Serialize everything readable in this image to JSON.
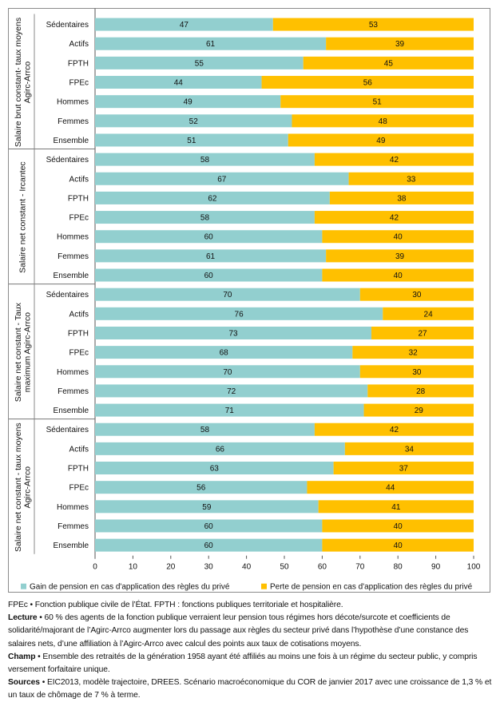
{
  "chart_data": {
    "type": "bar",
    "stacked": true,
    "orientation": "horizontal",
    "xlim": [
      0,
      100
    ],
    "xticks": [
      0,
      10,
      20,
      30,
      40,
      50,
      60,
      70,
      80,
      90,
      100
    ],
    "categories": [
      "Sédentaires",
      "Actifs",
      "FPTH",
      "FPEc",
      "Hommes",
      "Femmes",
      "Ensemble"
    ],
    "series_names": [
      "Gain de pension en cas d'application des règles du privé",
      "Perte de pension en cas d'application des règles du privé"
    ],
    "colors": {
      "gain": "#92cfcf",
      "perte": "#ffc000"
    },
    "legend_position": "bottom",
    "groups": [
      {
        "label_lines": [
          "Salaire brut constant- taux moyens",
          "Agirc-Arrco"
        ],
        "gain": [
          47,
          61,
          55,
          44,
          49,
          52,
          51
        ],
        "perte": [
          53,
          39,
          45,
          56,
          51,
          48,
          49
        ]
      },
      {
        "label_lines": [
          "Salaire net constant - Ircantec"
        ],
        "gain": [
          58,
          67,
          62,
          58,
          60,
          61,
          60
        ],
        "perte": [
          42,
          33,
          38,
          42,
          40,
          39,
          40
        ]
      },
      {
        "label_lines": [
          "Salaire net constant - Taux",
          "maximum Agirc-Arrco"
        ],
        "gain": [
          70,
          76,
          73,
          68,
          70,
          72,
          71
        ],
        "perte": [
          30,
          24,
          27,
          32,
          30,
          28,
          29
        ]
      },
      {
        "label_lines": [
          "Salaire net constant - taux moyens",
          "Agirc-Arrco"
        ],
        "gain": [
          58,
          66,
          63,
          56,
          59,
          60,
          60
        ],
        "perte": [
          42,
          34,
          37,
          44,
          41,
          40,
          40
        ]
      }
    ]
  },
  "notes": {
    "fpec_def": "FPEc • Fonction publique civile de l’État. FPTH : fonctions publiques territoriale et hospitalière.",
    "lecture_label": "Lecture",
    "lecture_text": " • 60 % des agents de la fonction publique verraient leur pension tous régimes hors décote/surcote et coefficients de solidarité/majorant de l’Agirc-Arrco augmenter lors du passage aux règles du secteur privé dans l’hypothèse d’une constance des salaires nets, d’une affiliation à l’Agirc-Arrco avec calcul des points aux taux de cotisations moyens.",
    "champ_label": "Champ",
    "champ_text": " • Ensemble des retraités de la génération 1958 ayant été affiliés au moins une fois à un régime du secteur public, y compris versement forfaitaire unique.",
    "sources_label": "Sources",
    "sources_text": " • EIC2013, modèle trajectoire, DREES. Scénario macroéconomique du COR de janvier 2017 avec une croissance de 1,3 % et un taux de chômage de 7 % à terme."
  }
}
